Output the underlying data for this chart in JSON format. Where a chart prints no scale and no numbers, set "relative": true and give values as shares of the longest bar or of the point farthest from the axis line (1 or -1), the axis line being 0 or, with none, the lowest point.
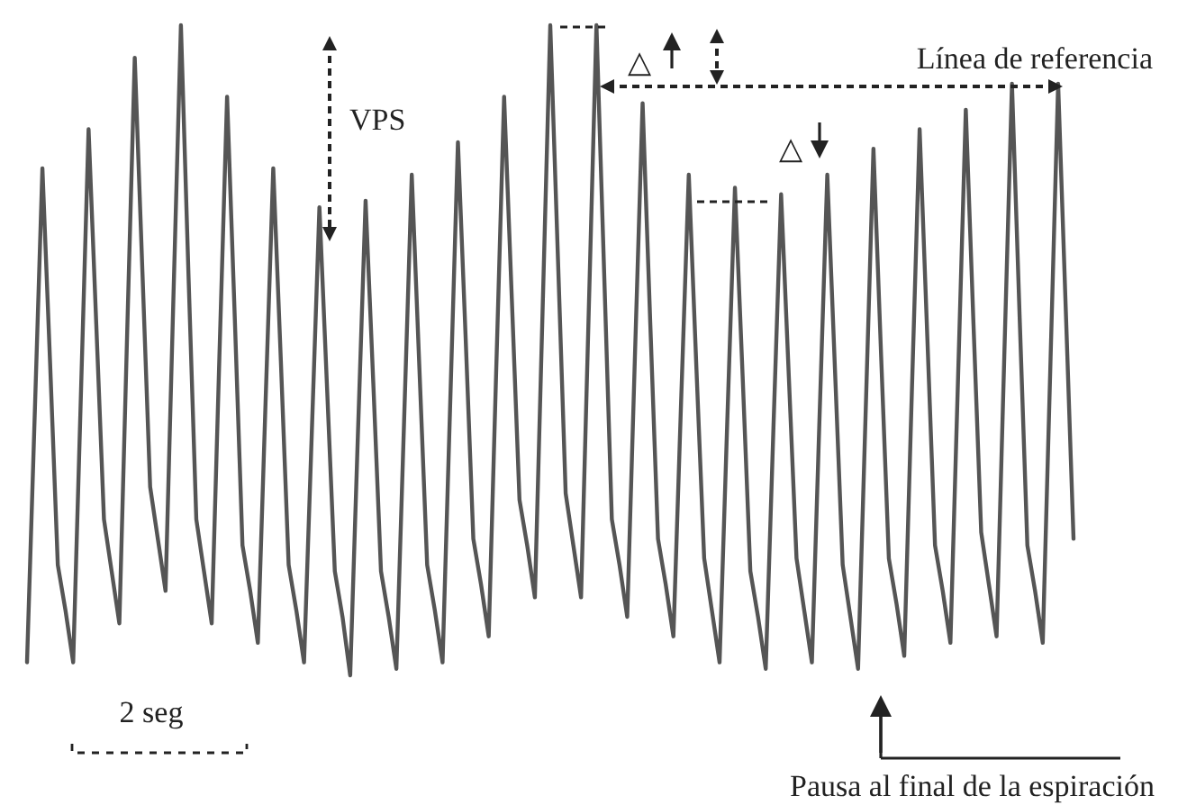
{
  "chart_data": {
    "type": "line",
    "relative": true,
    "annotations": [
      "VPS",
      "Línea de referencia",
      "△",
      "△",
      "2 seg",
      "Pausa al final de la espiración"
    ],
    "categories": [
      null,
      null,
      null,
      null,
      null,
      null,
      null,
      null,
      null,
      null,
      null,
      null,
      null,
      null,
      null,
      null,
      null,
      null,
      null,
      null,
      null,
      null,
      null,
      null,
      null,
      null,
      null,
      null,
      null,
      null,
      null,
      null,
      null,
      null,
      null,
      null,
      null,
      null,
      null,
      null,
      null,
      null,
      null,
      null,
      null,
      null,
      null,
      null,
      null,
      null,
      null,
      null,
      null,
      null,
      null,
      null,
      null,
      null,
      null,
      null,
      null,
      null,
      null,
      null,
      null,
      null,
      null,
      null,
      null,
      null,
      null,
      null,
      null,
      null,
      null,
      null,
      null,
      null,
      null,
      null,
      null,
      null,
      null,
      null,
      null,
      null,
      null,
      null,
      null,
      null,
      null,
      null,
      null,
      null,
      null,
      null,
      null,
      null,
      null,
      null,
      null,
      null,
      null,
      null,
      null,
      null,
      null,
      null,
      null,
      null,
      null,
      null,
      null,
      null,
      null,
      null,
      null,
      null,
      null,
      null,
      null,
      null,
      null,
      null,
      null,
      null,
      null,
      null,
      null,
      null,
      null,
      null,
      null,
      null,
      null,
      null,
      null
    ],
    "series": [
      {
        "color": "#555555",
        "values": [
          0.02,
          0.4,
          0.78,
          0.48,
          0.17,
          0.1,
          0.02,
          0.43,
          0.84,
          0.54,
          0.24,
          0.16,
          0.08,
          0.52,
          0.95,
          0.62,
          0.29,
          0.21,
          0.13,
          0.57,
          1.0,
          0.61,
          0.24,
          0.16,
          0.08,
          0.49,
          0.89,
          0.55,
          0.2,
          0.13,
          0.05,
          0.42,
          0.78,
          0.48,
          0.17,
          0.1,
          0.02,
          0.37,
          0.72,
          0.44,
          0.16,
          0.09,
          0.0,
          0.37,
          0.73,
          0.45,
          0.16,
          0.09,
          0.01,
          0.39,
          0.77,
          0.47,
          0.17,
          0.1,
          0.02,
          0.42,
          0.82,
          0.52,
          0.21,
          0.14,
          0.06,
          0.48,
          0.89,
          0.58,
          0.27,
          0.2,
          0.12,
          0.56,
          1.0,
          0.64,
          0.28,
          0.2,
          0.12,
          0.56,
          1.0,
          0.62,
          0.24,
          0.17,
          0.09,
          0.49,
          0.88,
          0.54,
          0.21,
          0.14,
          0.06,
          0.42,
          0.77,
          0.47,
          0.18,
          0.1,
          0.02,
          0.39,
          0.75,
          0.46,
          0.16,
          0.09,
          0.01,
          0.38,
          0.74,
          0.46,
          0.18,
          0.1,
          0.02,
          0.4,
          0.77,
          0.47,
          0.17,
          0.09,
          0.01,
          0.41,
          0.81,
          0.49,
          0.18,
          0.11,
          0.03,
          0.44,
          0.84,
          0.52,
          0.2,
          0.13,
          0.05,
          0.46,
          0.87,
          0.54,
          0.22,
          0.14,
          0.06,
          0.49,
          0.91,
          0.55,
          0.2,
          0.13,
          0.05,
          0.48,
          0.91,
          0.56,
          0.21
        ]
      }
    ]
  }
}
